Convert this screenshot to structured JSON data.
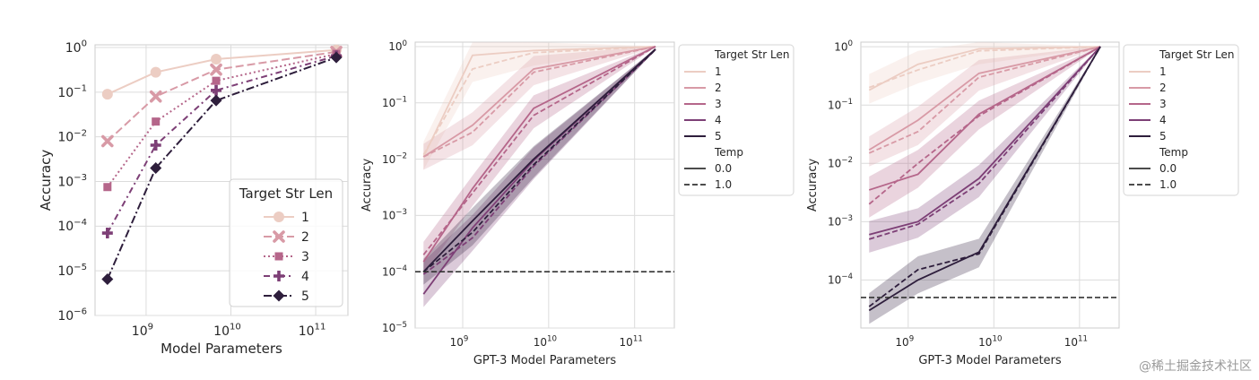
{
  "chart_data": [
    {
      "type": "line",
      "panel": "left",
      "xlabel": "Model Parameters",
      "ylabel": "Accuracy",
      "xscale": "log",
      "yscale": "log",
      "xlim": [
        250000000.0,
        240000000000.0
      ],
      "ylim": [
        1e-06,
        1.15
      ],
      "x_ticks": [
        {
          "value": 1000000000.0,
          "exp": "9"
        },
        {
          "value": 10000000000.0,
          "exp": "10"
        },
        {
          "value": 100000000000.0,
          "exp": "11"
        }
      ],
      "y_ticks": [
        {
          "value": 1,
          "exp": "0"
        },
        {
          "value": 0.1,
          "exp": "−1"
        },
        {
          "value": 0.01,
          "exp": "−2"
        },
        {
          "value": 0.001,
          "exp": "−3"
        },
        {
          "value": 0.0001,
          "exp": "−4"
        },
        {
          "value": 1e-05,
          "exp": "−5"
        },
        {
          "value": 1e-06,
          "exp": "−6"
        }
      ],
      "x": [
        350000000.0,
        1300000000.0,
        6700000000.0,
        175000000000.0
      ],
      "legend": {
        "title": "Target Str Len",
        "placement": "lower-right"
      },
      "series": [
        {
          "name": "1",
          "color": "#eccdc3",
          "dash": "",
          "marker": "circle",
          "values": [
            0.09,
            0.28,
            0.55,
            0.88
          ]
        },
        {
          "name": "2",
          "color": "#d89aa6",
          "dash": "9,4",
          "marker": "x",
          "values": [
            0.008,
            0.08,
            0.32,
            0.8
          ]
        },
        {
          "name": "3",
          "color": "#b5668a",
          "dash": "2,3",
          "marker": "square",
          "values": [
            0.00075,
            0.022,
            0.18,
            0.72
          ]
        },
        {
          "name": "4",
          "color": "#7d3f76",
          "dash": "7,4,2,4",
          "marker": "plus",
          "values": [
            7e-05,
            0.0065,
            0.11,
            0.65
          ]
        },
        {
          "name": "5",
          "color": "#2e1e3c",
          "dash": "9,3,2,3",
          "marker": "diamond",
          "values": [
            6.5e-06,
            0.002,
            0.065,
            0.6
          ]
        }
      ]
    },
    {
      "type": "line",
      "panel": "middle",
      "xlabel": "GPT-3 Model Parameters",
      "ylabel": "Accuracy",
      "xscale": "log",
      "yscale": "log",
      "xlim": [
        280000000.0,
        290000000000.0
      ],
      "ylim": [
        1e-05,
        1.2
      ],
      "x_ticks": [
        {
          "value": 1000000000.0,
          "exp": "9"
        },
        {
          "value": 10000000000.0,
          "exp": "10"
        },
        {
          "value": 100000000000.0,
          "exp": "11"
        }
      ],
      "y_ticks": [
        {
          "value": 1,
          "exp": "0"
        },
        {
          "value": 0.1,
          "exp": "−1"
        },
        {
          "value": 0.01,
          "exp": "−2"
        },
        {
          "value": 0.001,
          "exp": "−3"
        },
        {
          "value": 0.0001,
          "exp": "−4"
        },
        {
          "value": 1e-05,
          "exp": "−5"
        }
      ],
      "x": [
        350000000.0,
        1300000000.0,
        6700000000.0,
        175000000000.0
      ],
      "reference_line": 0.0001,
      "legend": {
        "title": "Target Str Len",
        "temp_title": "Temp",
        "temp_labels": [
          "0.0",
          "1.0"
        ],
        "placement": "outside-right"
      },
      "series": [
        {
          "name": "1",
          "color": "#eccdc3",
          "temp0": [
            0.011,
            0.7,
            0.85,
            1.0
          ],
          "temp1": [
            0.012,
            0.4,
            0.78,
            1.0
          ]
        },
        {
          "name": "2",
          "color": "#d89aa6",
          "temp0": [
            0.011,
            0.04,
            0.4,
            1.0
          ],
          "temp1": [
            0.011,
            0.03,
            0.35,
            1.0
          ]
        },
        {
          "name": "3",
          "color": "#b5668a",
          "temp0": [
            0.00015,
            0.003,
            0.08,
            1.0
          ],
          "temp1": [
            0.0002,
            0.0025,
            0.06,
            1.0
          ]
        },
        {
          "name": "4",
          "color": "#7d3f76",
          "temp0": [
            4e-05,
            0.0006,
            0.0095,
            0.9
          ],
          "temp1": [
            9e-05,
            0.0004,
            0.0075,
            0.88
          ]
        },
        {
          "name": "5",
          "color": "#2e1e3c",
          "temp0": [
            0.0001,
            0.0008,
            0.01,
            0.9
          ],
          "temp1": [
            0.0001,
            0.0005,
            0.008,
            0.88
          ]
        }
      ]
    },
    {
      "type": "line",
      "panel": "right",
      "xlabel": "GPT-3 Model Parameters",
      "ylabel": "Accuracy",
      "xscale": "log",
      "yscale": "log",
      "xlim": [
        280000000.0,
        290000000000.0
      ],
      "ylim": [
        1.5e-05,
        1.2
      ],
      "x_ticks": [
        {
          "value": 1000000000.0,
          "exp": "9"
        },
        {
          "value": 10000000000.0,
          "exp": "10"
        },
        {
          "value": 100000000000.0,
          "exp": "11"
        }
      ],
      "y_ticks": [
        {
          "value": 1,
          "exp": "0"
        },
        {
          "value": 0.1,
          "exp": "−1"
        },
        {
          "value": 0.01,
          "exp": "−2"
        },
        {
          "value": 0.001,
          "exp": "−3"
        },
        {
          "value": 0.0001,
          "exp": "−4"
        }
      ],
      "x": [
        350000000.0,
        1300000000.0,
        6700000000.0,
        175000000000.0
      ],
      "reference_line": 5e-05,
      "legend": {
        "title": "Target Str Len",
        "temp_title": "Temp",
        "temp_labels": [
          "0.0",
          "1.0"
        ],
        "placement": "outside-right"
      },
      "series": [
        {
          "name": "1",
          "color": "#eccdc3",
          "temp0": [
            0.18,
            0.5,
            0.92,
            1.0
          ],
          "temp1": [
            0.2,
            0.4,
            0.85,
            1.0
          ]
        },
        {
          "name": "2",
          "color": "#d89aa6",
          "temp0": [
            0.017,
            0.055,
            0.35,
            1.0
          ],
          "temp1": [
            0.015,
            0.035,
            0.3,
            1.0
          ]
        },
        {
          "name": "3",
          "color": "#b5668a",
          "temp0": [
            0.0035,
            0.0065,
            0.07,
            1.0
          ],
          "temp1": [
            0.002,
            0.01,
            0.065,
            1.0
          ]
        },
        {
          "name": "4",
          "color": "#7d3f76",
          "temp0": [
            0.0006,
            0.001,
            0.0055,
            1.0
          ],
          "temp1": [
            0.0005,
            0.0009,
            0.0045,
            1.0
          ]
        },
        {
          "name": "5",
          "color": "#2e1e3c",
          "temp0": [
            3e-05,
            0.0001,
            0.0003,
            1.0
          ],
          "temp1": [
            3.5e-05,
            0.00015,
            0.00028,
            1.0
          ]
        }
      ]
    }
  ],
  "watermark": "@稀土掘金技术社区"
}
